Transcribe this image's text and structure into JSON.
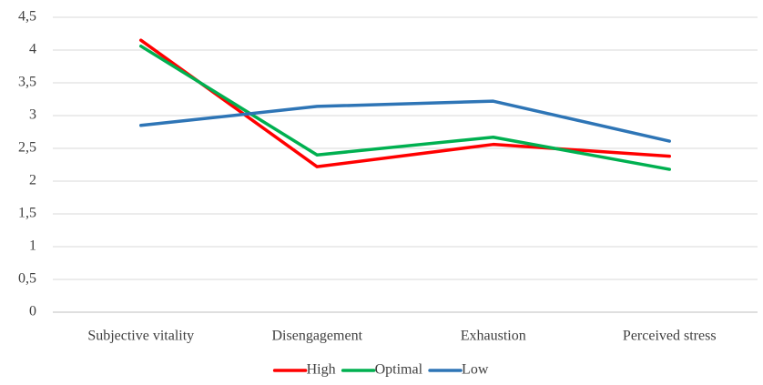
{
  "chart_data": {
    "type": "line",
    "categories": [
      "Subjective vitality",
      "Disengagement",
      "Exhaustion",
      "Perceived stress"
    ],
    "series": [
      {
        "name": "High",
        "color": "#ff0000",
        "values": [
          4.15,
          2.22,
          2.56,
          2.38
        ]
      },
      {
        "name": "Optimal",
        "color": "#00b050",
        "values": [
          4.06,
          2.4,
          2.67,
          2.18
        ]
      },
      {
        "name": "Low",
        "color": "#2e75b6",
        "values": [
          2.85,
          3.14,
          3.22,
          2.61
        ]
      }
    ],
    "ylim": [
      0,
      4.5
    ],
    "yticks": [
      0,
      {
        "value": 0.5,
        "label": "0,5"
      },
      1,
      {
        "value": 1.5,
        "label": "1,5"
      },
      2,
      {
        "value": 2.5,
        "label": "2,5"
      },
      3,
      {
        "value": 3.5,
        "label": "3,5"
      },
      4,
      {
        "value": 4.5,
        "label": "4,5"
      }
    ],
    "grid": true,
    "legend": "bottom"
  }
}
